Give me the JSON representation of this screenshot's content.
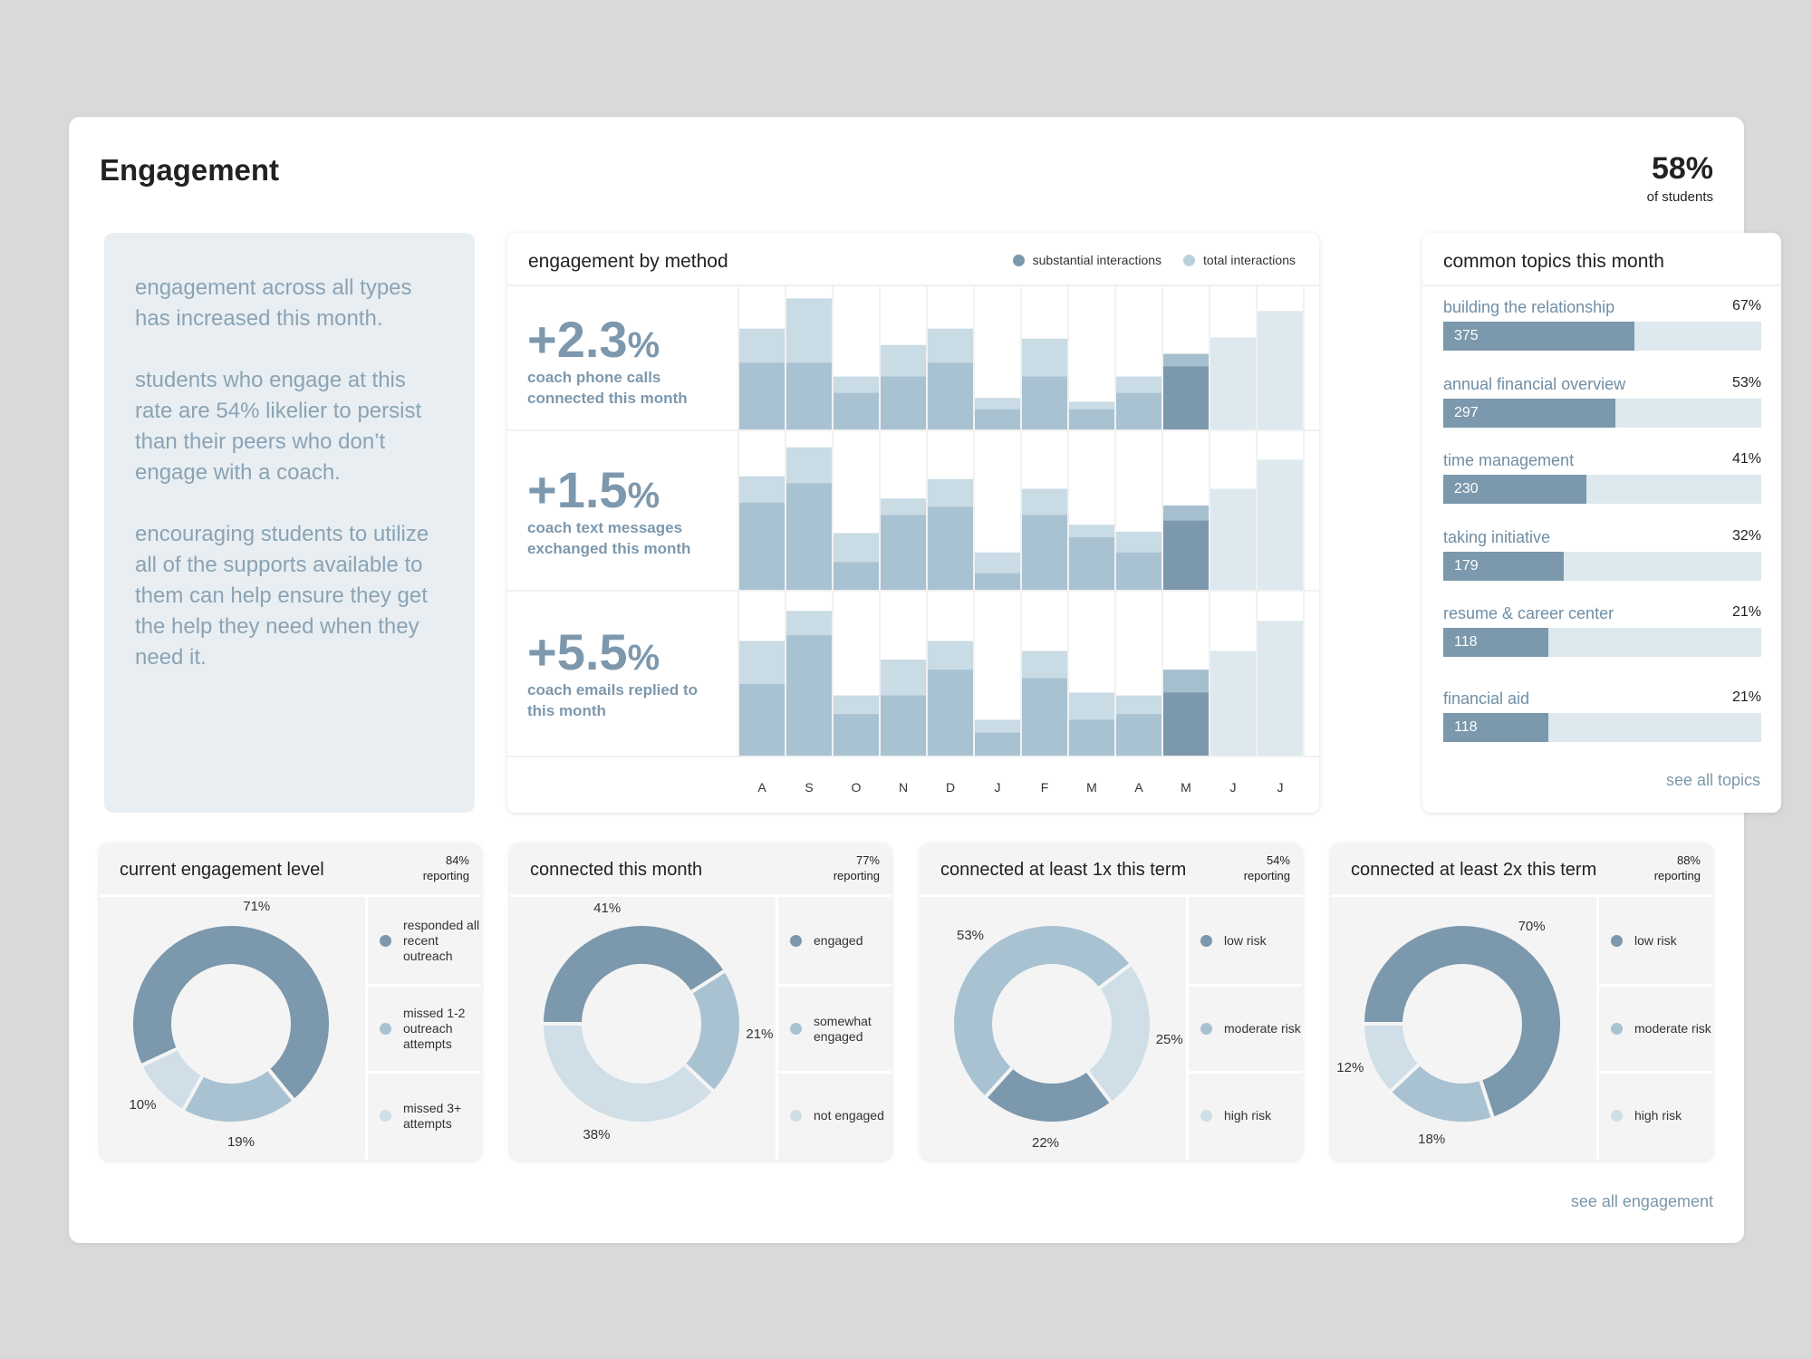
{
  "title": "Engagement",
  "headline": {
    "value": "58%",
    "label": "of students"
  },
  "insight": {
    "paragraphs": [
      "engagement across all types has increased this month.",
      "students who engage at this rate are 54% likelier to persist than their peers who don’t engage with a coach.",
      "encouraging students to utilize all of the supports available to them can help ensure they get the help they need when they need it."
    ]
  },
  "method": {
    "title": "engagement by method",
    "legend": {
      "substantial": "substantial interactions",
      "total": "total interactions"
    },
    "metrics": [
      {
        "value": "+2.3",
        "unit": "%",
        "label": "coach phone calls connected this month"
      },
      {
        "value": "+1.5",
        "unit": "%",
        "label": "coach text messages exchanged this month"
      },
      {
        "value": "+5.5",
        "unit": "%",
        "label": "coach emails replied to this month"
      }
    ]
  },
  "chart_data": {
    "type": "bar",
    "title": "engagement by method",
    "categories": [
      "A",
      "S",
      "O",
      "N",
      "D",
      "J",
      "F",
      "M",
      "A",
      "M",
      "J",
      "J"
    ],
    "current_month_index": 9,
    "series_names": [
      "substantial interactions",
      "total interactions"
    ],
    "rows": [
      {
        "name": "coach phone calls",
        "substantial": [
          53,
          53,
          29,
          42,
          53,
          16,
          42,
          16,
          29,
          50,
          null,
          null
        ],
        "total": [
          80,
          104,
          42,
          67,
          80,
          25,
          72,
          22,
          42,
          60,
          73,
          94
        ],
        "ylim": [
          0,
          110
        ]
      },
      {
        "name": "coach text messages",
        "substantial": [
          63,
          77,
          20,
          54,
          60,
          12,
          54,
          38,
          27,
          50,
          null,
          null
        ],
        "total": [
          82,
          103,
          41,
          66,
          80,
          27,
          73,
          47,
          42,
          61,
          73,
          94
        ],
        "ylim": [
          0,
          110
        ]
      },
      {
        "name": "coach emails",
        "substantial": [
          50,
          84,
          29,
          42,
          60,
          16,
          54,
          25,
          29,
          44,
          null,
          null
        ],
        "total": [
          80,
          101,
          42,
          67,
          80,
          25,
          73,
          44,
          42,
          60,
          73,
          94
        ],
        "ylim": [
          0,
          110
        ]
      }
    ]
  },
  "topics": {
    "title": "common topics this month",
    "items": [
      {
        "name": "building the relationship",
        "pct": "67%",
        "count": "375",
        "fraction": 0.6
      },
      {
        "name": "annual financial overview",
        "pct": "53%",
        "count": "297",
        "fraction": 0.54
      },
      {
        "name": "time management",
        "pct": "41%",
        "count": "230",
        "fraction": 0.45
      },
      {
        "name": "taking initiative",
        "pct": "32%",
        "count": "179",
        "fraction": 0.38
      },
      {
        "name": "resume & career center",
        "pct": "21%",
        "count": "118",
        "fraction": 0.33
      },
      {
        "name": "financial aid",
        "pct": "21%",
        "count": "118",
        "fraction": 0.33
      }
    ],
    "link": "see all topics"
  },
  "donut_cards": [
    {
      "title": "current engagement level",
      "reporting_pct": "84%",
      "reporting_label": "reporting",
      "slices": [
        {
          "value": 71,
          "label": "71%",
          "color": "#7b98ac",
          "legend": "responded all recent outreach"
        },
        {
          "value": 19,
          "label": "19%",
          "color": "#a9c2d2",
          "legend": "missed 1-2 outreach attempts"
        },
        {
          "value": 10,
          "label": "10%",
          "color": "#cfdee7",
          "legend": "missed 3+ attempts"
        }
      ]
    },
    {
      "title": "connected this month",
      "reporting_pct": "77%",
      "reporting_label": "reporting",
      "slices": [
        {
          "value": 41,
          "label": "41%",
          "color": "#7b98ac",
          "legend": "engaged"
        },
        {
          "value": 21,
          "label": "21%",
          "color": "#a9c2d2",
          "legend": "somewhat engaged"
        },
        {
          "value": 38,
          "label": "38%",
          "color": "#cfdee7",
          "legend": "not engaged"
        }
      ]
    },
    {
      "title": "connected at least 1x this term",
      "reporting_pct": "54%",
      "reporting_label": "reporting",
      "slices": [
        {
          "value": 22,
          "label": "22%",
          "color": "#7b98ac",
          "legend": "low risk"
        },
        {
          "value": 53,
          "label": "53%",
          "color": "#a9c2d2",
          "legend": "moderate risk"
        },
        {
          "value": 25,
          "label": "25%",
          "color": "#cfdee7",
          "legend": "high risk"
        }
      ]
    },
    {
      "title": "connected at least 2x this term",
      "reporting_pct": "88%",
      "reporting_label": "reporting",
      "slices": [
        {
          "value": 70,
          "label": "70%",
          "color": "#7b98ac",
          "legend": "low risk"
        },
        {
          "value": 18,
          "label": "18%",
          "color": "#a9c2d2",
          "legend": "moderate risk"
        },
        {
          "value": 12,
          "label": "12%",
          "color": "#cfdee7",
          "legend": "high risk"
        }
      ]
    }
  ],
  "footer_link": "see all engagement",
  "colors": {
    "substantial": "#a9c2d2",
    "total": "#c9dbe4",
    "current": "#7b98ac",
    "projected": "#dde9ee",
    "accent": "#7b98ac"
  }
}
